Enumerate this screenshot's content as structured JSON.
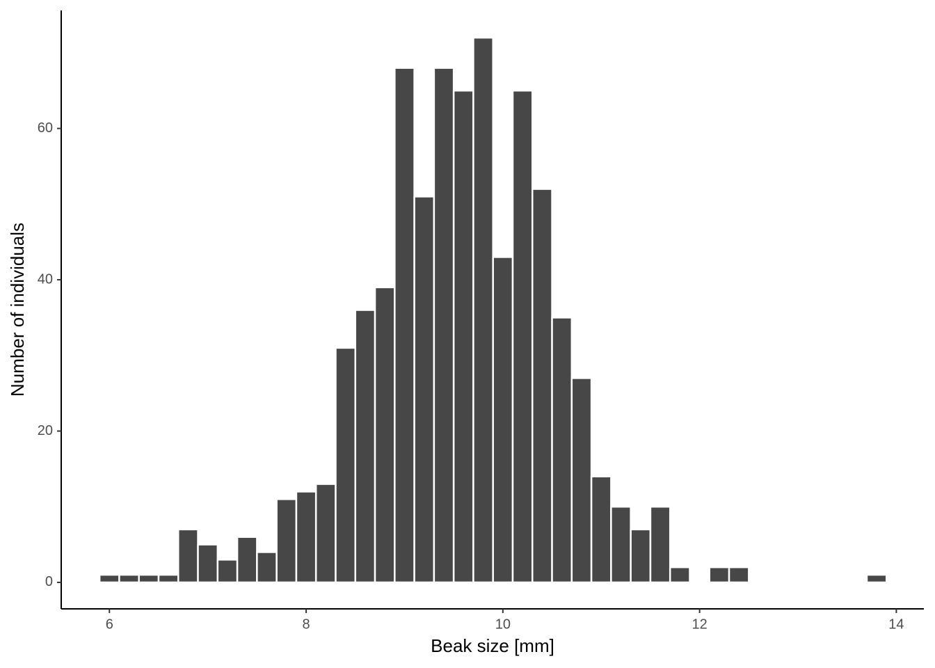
{
  "chart_data": {
    "type": "histogram",
    "x_label": "Beak size [mm]",
    "y_label": "Number of individuals",
    "color": "#474747",
    "bins": [
      5.9,
      6.1,
      6.3,
      6.5,
      6.7,
      6.9,
      7.1,
      7.3,
      7.5,
      7.7,
      7.9,
      8.1,
      8.3,
      8.5,
      8.7,
      8.9,
      9.1,
      9.3,
      9.5,
      9.7,
      9.9,
      10.1,
      10.3,
      10.5,
      10.7,
      10.9,
      11.1,
      11.3,
      11.5,
      11.7,
      11.9,
      12.1,
      12.3,
      12.5,
      12.7,
      12.9,
      13.1,
      13.3,
      13.5,
      13.7,
      13.9
    ],
    "values": [
      1,
      1,
      1,
      1,
      7,
      5,
      3,
      6,
      4,
      11,
      12,
      13,
      31,
      36,
      39,
      68,
      51,
      68,
      65,
      72,
      43,
      65,
      52,
      35,
      27,
      14,
      10,
      7,
      10,
      2,
      0,
      2,
      2,
      0,
      0,
      0,
      0,
      0,
      0,
      1
    ],
    "xlim": [
      5.51,
      14.28
    ],
    "ylim": [
      -3.5,
      75.6
    ],
    "xticks": [
      6,
      8,
      10,
      12,
      14
    ],
    "yticks": [
      0,
      20,
      40,
      60
    ]
  }
}
